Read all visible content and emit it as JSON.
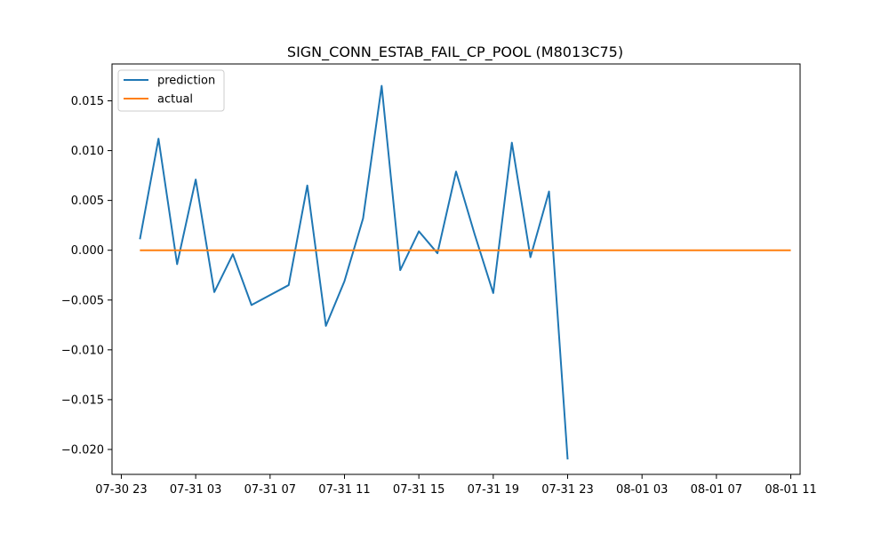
{
  "chart_data": {
    "type": "line",
    "title": "SIGN_CONN_ESTAB_FAIL_CP_POOL (M8013C75)",
    "xlabel": "",
    "ylabel": "",
    "x_axis": {
      "type": "time",
      "xlim": [
        "2024-07-30T22:30",
        "2024-08-01T11:30"
      ],
      "ticks": [
        "2024-07-30T23:00",
        "2024-07-31T03:00",
        "2024-07-31T07:00",
        "2024-07-31T11:00",
        "2024-07-31T15:00",
        "2024-07-31T19:00",
        "2024-07-31T23:00",
        "2024-08-01T03:00",
        "2024-08-01T07:00",
        "2024-08-01T11:00"
      ],
      "tick_labels": [
        "07-30 23",
        "07-31 03",
        "07-31 07",
        "07-31 11",
        "07-31 15",
        "07-31 19",
        "07-31 23",
        "08-01 03",
        "08-01 07",
        "08-01 11"
      ]
    },
    "ylim": [
      -0.0225,
      0.0187
    ],
    "y_ticks": [
      -0.02,
      -0.015,
      -0.01,
      -0.005,
      0.0,
      0.005,
      0.01,
      0.015
    ],
    "y_tick_labels": [
      "−0.020",
      "−0.015",
      "−0.010",
      "−0.005",
      "0.000",
      "0.005",
      "0.010",
      "0.015"
    ],
    "grid": false,
    "legend": {
      "placement": "top-left"
    },
    "series": [
      {
        "name": "prediction",
        "color": "#1f77b4",
        "points": [
          [
            "2024-07-31T00:00",
            0.0011
          ],
          [
            "2024-07-31T01:00",
            0.0112
          ],
          [
            "2024-07-31T02:00",
            -0.0014
          ],
          [
            "2024-07-31T03:00",
            0.0071
          ],
          [
            "2024-07-31T04:00",
            -0.0042
          ],
          [
            "2024-07-31T05:00",
            -0.0004
          ],
          [
            "2024-07-31T06:00",
            -0.0055
          ],
          [
            "2024-07-31T08:00",
            -0.0035
          ],
          [
            "2024-07-31T09:00",
            0.0065
          ],
          [
            "2024-07-31T10:00",
            -0.0076
          ],
          [
            "2024-07-31T11:00",
            -0.0031
          ],
          [
            "2024-07-31T12:00",
            0.0032
          ],
          [
            "2024-07-31T13:00",
            0.0165
          ],
          [
            "2024-07-31T14:00",
            -0.002
          ],
          [
            "2024-07-31T15:00",
            0.0019
          ],
          [
            "2024-07-31T16:00",
            -0.0003
          ],
          [
            "2024-07-31T17:00",
            0.0079
          ],
          [
            "2024-07-31T18:00",
            0.0016
          ],
          [
            "2024-07-31T19:00",
            -0.0043
          ],
          [
            "2024-07-31T20:00",
            0.0108
          ],
          [
            "2024-07-31T21:00",
            -0.0007
          ],
          [
            "2024-07-31T22:00",
            0.0059
          ],
          [
            "2024-07-31T23:00",
            -0.021
          ]
        ]
      },
      {
        "name": "actual",
        "color": "#ff7f0e",
        "points": [
          [
            "2024-07-31T00:00",
            0.0
          ],
          [
            "2024-08-01T11:00",
            0.0
          ]
        ]
      }
    ]
  }
}
